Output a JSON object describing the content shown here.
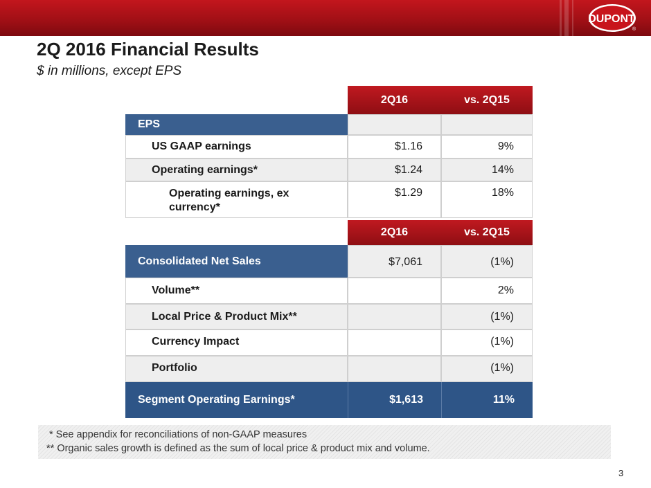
{
  "header": {
    "brand": "DUPONT",
    "registered": "®"
  },
  "title": "2Q 2016 Financial Results",
  "subtitle": "$ in millions, except EPS",
  "eps_table": {
    "col1": "2Q16",
    "col2": "vs. 2Q15",
    "section": "EPS",
    "rows": [
      {
        "label": "US GAAP earnings",
        "value": "$1.16",
        "change": "9%"
      },
      {
        "label": "Operating earnings*",
        "value": "$1.24",
        "change": "14%"
      },
      {
        "label": "Operating earnings, ex currency*",
        "value": "$1.29",
        "change": "18%"
      }
    ]
  },
  "sales_table": {
    "col1": "2Q16",
    "col2": "vs. 2Q15",
    "net_sales": {
      "label": "Consolidated Net Sales",
      "value": "$7,061",
      "change": "(1%)"
    },
    "rows": [
      {
        "label": "Volume**",
        "value": "",
        "change": "2%"
      },
      {
        "label": "Local Price & Product Mix**",
        "value": "",
        "change": "(1%)"
      },
      {
        "label": "Currency Impact",
        "value": "",
        "change": "(1%)"
      },
      {
        "label": "Portfolio",
        "value": "",
        "change": "(1%)"
      }
    ],
    "segment": {
      "label": "Segment Operating Earnings*",
      "value": "$1,613",
      "change": "11%"
    }
  },
  "footnotes": {
    "line1": "*  See appendix for reconciliations of non-GAAP measures",
    "line2": "** Organic sales growth is defined as the sum of local price & product mix and volume."
  },
  "page_number": "3"
}
